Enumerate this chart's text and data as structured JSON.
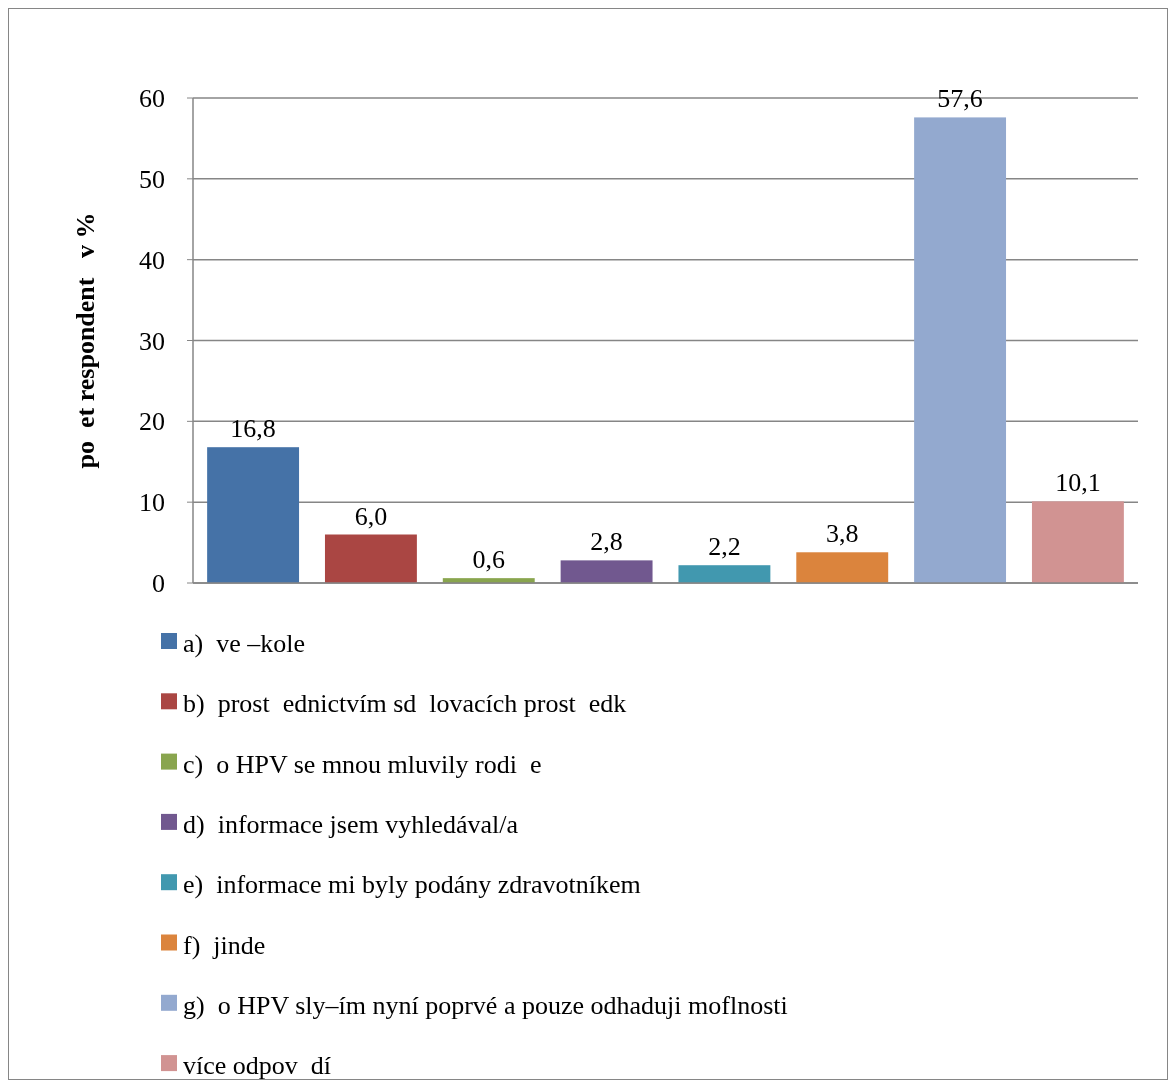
{
  "chart_data": {
    "type": "bar",
    "ylabel": "po  et respondent   v %",
    "categories": [
      null
    ],
    "series": [
      {
        "name": "a)  ve –kole",
        "color": "#4572a7",
        "values": [
          16.8
        ],
        "value_labels": [
          "16,8"
        ]
      },
      {
        "name": "b)  prost  ednictvím sd  lovacích prost  edk",
        "color": "#aa4643",
        "values": [
          6.0
        ],
        "value_labels": [
          "6,0"
        ]
      },
      {
        "name": "c)  o HPV se mnou mluvily rodi  e",
        "color": "#89a54e",
        "values": [
          0.6
        ],
        "value_labels": [
          "0,6"
        ]
      },
      {
        "name": "d)  informace jsem vyhledával/a",
        "color": "#71588f",
        "values": [
          2.8
        ],
        "value_labels": [
          "2,8"
        ]
      },
      {
        "name": "e)  informace mi byly podány zdravotníkem",
        "color": "#4198af",
        "values": [
          2.2
        ],
        "value_labels": [
          "2,2"
        ]
      },
      {
        "name": "f)  jinde",
        "color": "#db843d",
        "values": [
          3.8
        ],
        "value_labels": [
          "3,8"
        ]
      },
      {
        "name": "g)  o HPV sly–ím nyní poprvé a pouze odhaduji moflnosti",
        "color": "#93a9cf",
        "values": [
          57.6
        ],
        "value_labels": [
          "57,6"
        ]
      },
      {
        "name": "více odpov  dí",
        "color": "#d19392",
        "values": [
          10.1
        ],
        "value_labels": [
          "10,1"
        ]
      }
    ],
    "ylim": [
      0,
      60
    ],
    "yticks": [
      0,
      10,
      20,
      30,
      40,
      50,
      60
    ],
    "grid": "y",
    "legend": "bottom"
  }
}
